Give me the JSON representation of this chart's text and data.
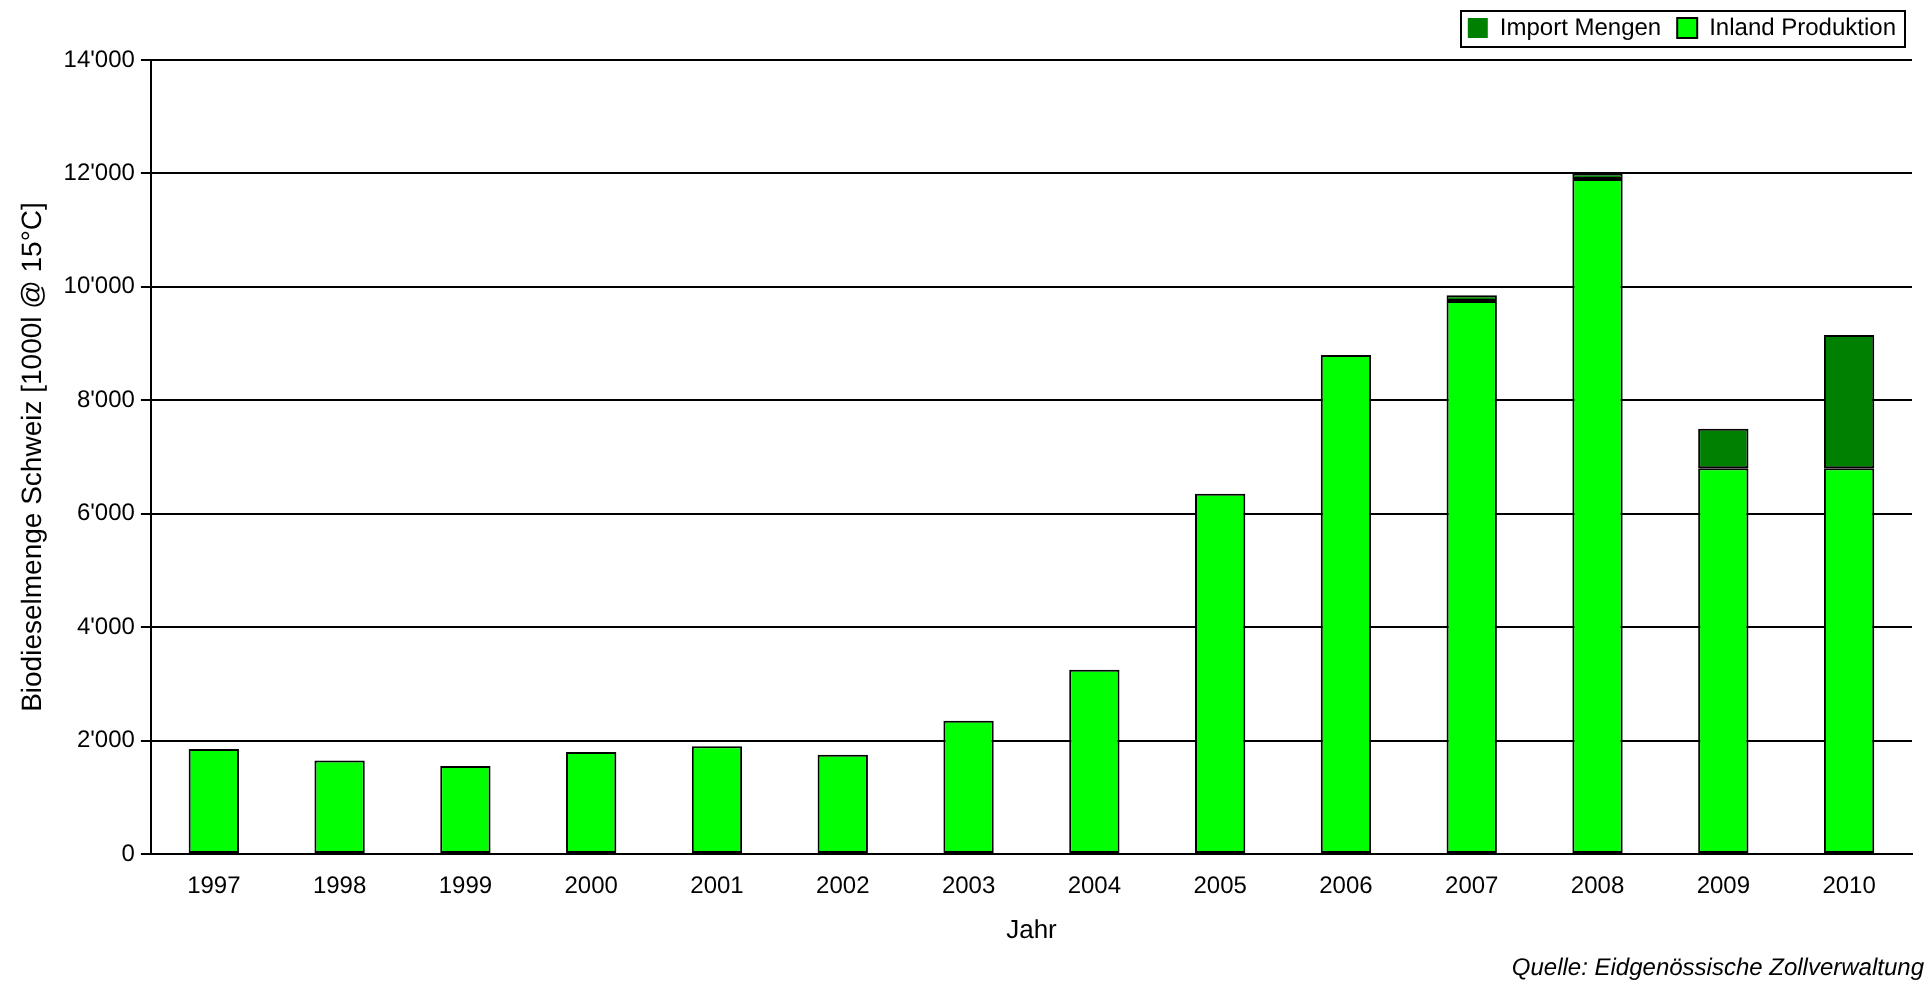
{
  "chart_data": {
    "type": "bar",
    "stacked": true,
    "categories": [
      "1997",
      "1998",
      "1999",
      "2000",
      "2001",
      "2002",
      "2003",
      "2004",
      "2005",
      "2006",
      "2007",
      "2008",
      "2009",
      "2010"
    ],
    "series": [
      {
        "name": "Inland Produktion",
        "color": "#00ff00",
        "values": [
          1850,
          1650,
          1550,
          1800,
          1900,
          1750,
          2350,
          3250,
          6350,
          8800,
          9750,
          11900,
          6800,
          6800
        ]
      },
      {
        "name": "Import Mengen",
        "color": "#008000",
        "values": [
          0,
          0,
          0,
          0,
          0,
          0,
          0,
          0,
          0,
          0,
          100,
          100,
          700,
          2350
        ]
      }
    ],
    "xlabel": "Jahr",
    "ylabel": "Biodieselmenge Schweiz [1000l @ 15°C]",
    "ylim": [
      0,
      14000
    ],
    "yticks": [
      {
        "value": 0,
        "label": "0"
      },
      {
        "value": 2000,
        "label": "2'000"
      },
      {
        "value": 4000,
        "label": "4'000"
      },
      {
        "value": 6000,
        "label": "6'000"
      },
      {
        "value": 8000,
        "label": "8'000"
      },
      {
        "value": 10000,
        "label": "10'000"
      },
      {
        "value": 12000,
        "label": "12'000"
      },
      {
        "value": 14000,
        "label": "14'000"
      }
    ],
    "grid": "y",
    "legend": "top right",
    "annotations": [
      "Quelle: Eidgenössische Zollverwaltung"
    ]
  }
}
